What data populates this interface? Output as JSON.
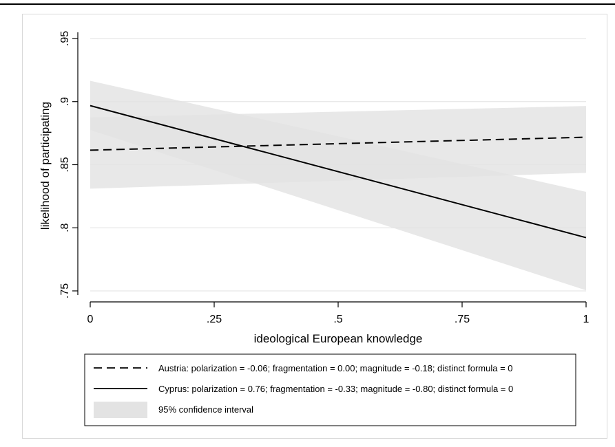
{
  "chart_data": {
    "type": "line",
    "title": "",
    "xlabel": "ideological European knowledge",
    "ylabel": "likelihood of participating",
    "xlim": [
      0,
      1
    ],
    "ylim": [
      0.75,
      0.95
    ],
    "x_ticks": [
      {
        "value": 0,
        "label": "0"
      },
      {
        "value": 0.25,
        "label": ".25"
      },
      {
        "value": 0.5,
        "label": ".5"
      },
      {
        "value": 0.75,
        "label": ".75"
      },
      {
        "value": 1,
        "label": "1"
      }
    ],
    "y_ticks": [
      {
        "value": 0.75,
        "label": ".75"
      },
      {
        "value": 0.8,
        "label": ".8"
      },
      {
        "value": 0.85,
        "label": ".85"
      },
      {
        "value": 0.9,
        "label": ".9"
      },
      {
        "value": 0.95,
        "label": ".95"
      }
    ],
    "grid": true,
    "legend_position": "bottom",
    "series": [
      {
        "name": "Austria: polarization = -0.06; fragmentation = 0.00; magnitude = -0.18; distinct formula = 0",
        "style": "dashed",
        "color": "#000000",
        "x": [
          0,
          1
        ],
        "y": [
          0.8615,
          0.8718
        ],
        "ci_lower": [
          0.831,
          0.8435
        ],
        "ci_upper": [
          0.8875,
          0.8965
        ]
      },
      {
        "name": "Cyprus: polarization = 0.76; fragmentation = -0.33; magnitude = -0.80; distinct formula = 0",
        "style": "solid",
        "color": "#000000",
        "x": [
          0,
          1
        ],
        "y": [
          0.8968,
          0.7922
        ],
        "ci_lower": [
          0.8775,
          0.7505
        ],
        "ci_upper": [
          0.9165,
          0.8285
        ]
      }
    ],
    "ci_label": "95% confidence interval",
    "ci_color": "#e3e3e3"
  }
}
